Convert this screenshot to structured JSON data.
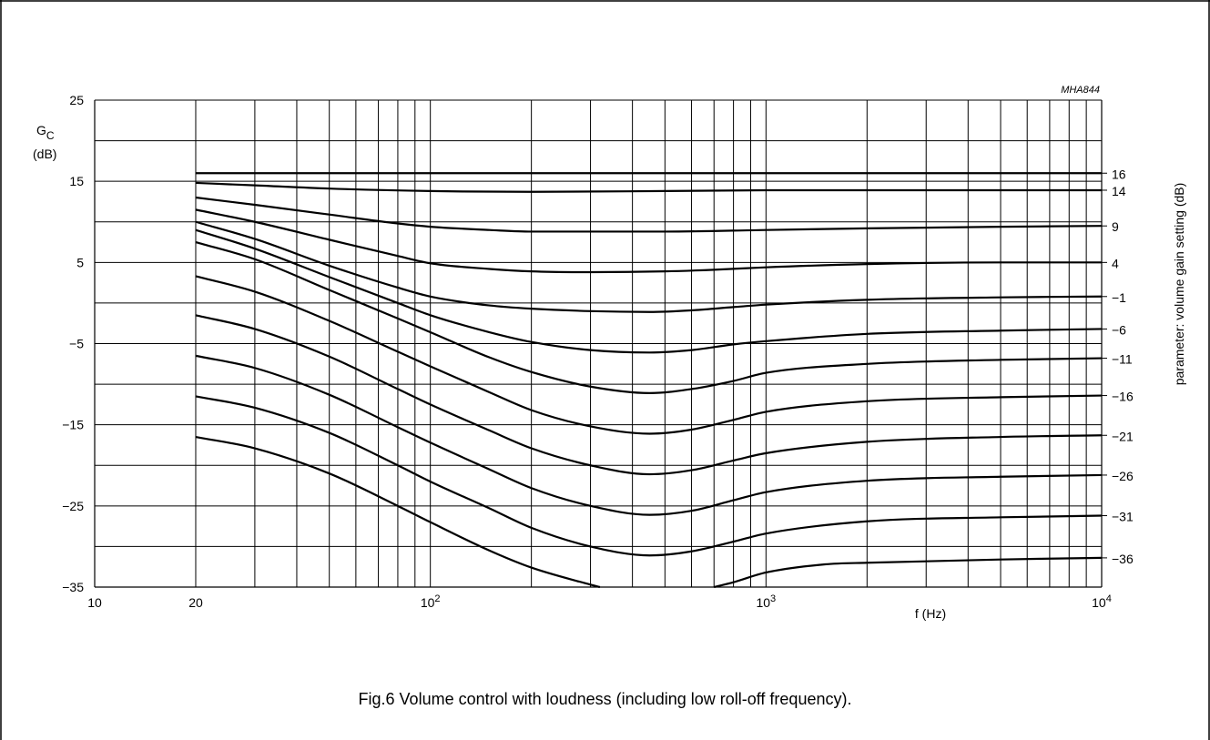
{
  "caption": "Fig.6  Volume control with loudness (including low roll-off frequency).",
  "chart_data": {
    "type": "line",
    "code": "MHA844",
    "x_scale": "log",
    "xlim": [
      10,
      10000
    ],
    "ylim": [
      -35,
      25
    ],
    "grid": true,
    "ylabel_main": "G",
    "ylabel_sub": "C",
    "ylabel_unit": "(dB)",
    "xlabel": "f (Hz)",
    "right_label": "parameter: volume gain setting (dB)",
    "y_ticks": [
      {
        "value": 25,
        "label": "25"
      },
      {
        "value": 15,
        "label": "15"
      },
      {
        "value": 5,
        "label": "5"
      },
      {
        "value": -5,
        "label": "−5"
      },
      {
        "value": -15,
        "label": "−15"
      },
      {
        "value": -25,
        "label": "−25"
      },
      {
        "value": -35,
        "label": "−35"
      }
    ],
    "x_ticks": [
      {
        "value": 10,
        "label": "10"
      },
      {
        "value": 20,
        "label": "20"
      },
      {
        "value": 100,
        "label": "10",
        "sup": "2"
      },
      {
        "value": 1000,
        "label": "10",
        "sup": "3"
      },
      {
        "value": 10000,
        "label": "10",
        "sup": "4"
      }
    ],
    "series": [
      {
        "name": "16",
        "x": [
          20,
          10000
        ],
        "y": [
          16,
          16
        ]
      },
      {
        "name": "14",
        "x": [
          20,
          30,
          50,
          100,
          200,
          500,
          1000,
          2000,
          5000,
          10000
        ],
        "y": [
          14.8,
          14.5,
          14.1,
          13.8,
          13.7,
          13.8,
          13.9,
          13.9,
          13.9,
          13.9
        ]
      },
      {
        "name": "9",
        "x": [
          20,
          30,
          50,
          80,
          100,
          150,
          200,
          300,
          500,
          1000,
          2000,
          5000,
          10000
        ],
        "y": [
          13,
          12.1,
          10.9,
          9.8,
          9.4,
          9.0,
          8.8,
          8.8,
          8.8,
          9.0,
          9.2,
          9.4,
          9.5
        ]
      },
      {
        "name": "4",
        "x": [
          20,
          30,
          50,
          80,
          100,
          150,
          200,
          300,
          500,
          700,
          1000,
          2000,
          5000,
          10000
        ],
        "y": [
          11.5,
          10.0,
          7.8,
          5.8,
          4.9,
          4.2,
          3.9,
          3.8,
          3.9,
          4.1,
          4.4,
          4.8,
          5.0,
          5.0
        ]
      },
      {
        "name": "−1",
        "x": [
          20,
          30,
          50,
          80,
          100,
          150,
          200,
          300,
          450,
          600,
          800,
          1000,
          2000,
          5000,
          10000
        ],
        "y": [
          10.0,
          7.9,
          4.6,
          1.9,
          0.8,
          -0.3,
          -0.7,
          -1.0,
          -1.1,
          -0.9,
          -0.5,
          -0.2,
          0.4,
          0.7,
          0.8
        ]
      },
      {
        "name": "−6",
        "x": [
          20,
          30,
          50,
          80,
          100,
          150,
          200,
          300,
          450,
          600,
          800,
          1000,
          2000,
          5000,
          10000
        ],
        "y": [
          9.0,
          6.7,
          3.2,
          0.0,
          -1.5,
          -3.6,
          -4.8,
          -5.8,
          -6.1,
          -5.8,
          -5.1,
          -4.7,
          -3.8,
          -3.4,
          -3.2
        ]
      },
      {
        "name": "−11",
        "x": [
          20,
          30,
          50,
          80,
          100,
          150,
          200,
          300,
          450,
          600,
          800,
          1000,
          2000,
          5000,
          10000
        ],
        "y": [
          7.5,
          5.4,
          1.6,
          -1.9,
          -3.6,
          -6.7,
          -8.5,
          -10.3,
          -11.1,
          -10.6,
          -9.6,
          -8.6,
          -7.5,
          -7.0,
          -6.8
        ]
      },
      {
        "name": "−16",
        "x": [
          20,
          30,
          50,
          80,
          100,
          150,
          200,
          300,
          450,
          600,
          800,
          1000,
          2000,
          5000,
          10000
        ],
        "y": [
          3.3,
          1.4,
          -2.2,
          -6.0,
          -7.8,
          -11.0,
          -13.2,
          -15.2,
          -16.1,
          -15.6,
          -14.4,
          -13.4,
          -12.1,
          -11.6,
          -11.4
        ]
      },
      {
        "name": "−21",
        "x": [
          20,
          30,
          50,
          80,
          100,
          150,
          200,
          300,
          450,
          600,
          800,
          1000,
          2000,
          5000,
          10000
        ],
        "y": [
          -1.5,
          -3.2,
          -6.6,
          -10.6,
          -12.5,
          -15.7,
          -17.9,
          -20.0,
          -21.1,
          -20.6,
          -19.4,
          -18.5,
          -17.1,
          -16.5,
          -16.3
        ]
      },
      {
        "name": "−26",
        "x": [
          20,
          30,
          50,
          80,
          100,
          150,
          200,
          300,
          450,
          600,
          800,
          1000,
          2000,
          5000,
          10000
        ],
        "y": [
          -6.5,
          -8.0,
          -11.3,
          -15.3,
          -17.2,
          -20.5,
          -22.8,
          -25.0,
          -26.1,
          -25.6,
          -24.3,
          -23.3,
          -21.9,
          -21.4,
          -21.2
        ]
      },
      {
        "name": "−31",
        "x": [
          20,
          30,
          50,
          80,
          100,
          150,
          200,
          300,
          450,
          600,
          800,
          1000,
          2000,
          5000,
          10000
        ],
        "y": [
          -11.5,
          -12.9,
          -16.0,
          -20.0,
          -22.0,
          -25.3,
          -27.7,
          -30.0,
          -31.1,
          -30.6,
          -29.4,
          -28.4,
          -26.9,
          -26.4,
          -26.2
        ]
      },
      {
        "name": "−36",
        "x": [
          20,
          30,
          50,
          80,
          100,
          150,
          200,
          300,
          320
        ],
        "y": [
          -16.5,
          -17.9,
          -21.0,
          -25.0,
          -27.0,
          -30.5,
          -32.6,
          -34.7,
          -35.0
        ],
        "x2": [
          700,
          800,
          1000,
          1500,
          2000,
          5000,
          10000
        ],
        "y2": [
          -35.0,
          -34.4,
          -33.2,
          -32.2,
          -32.0,
          -31.6,
          -31.4
        ]
      }
    ],
    "right_labels": [
      "16",
      "14",
      "9",
      "4",
      "−1",
      "−6",
      "−11",
      "−16",
      "−21",
      "−26",
      "−31",
      "−36"
    ]
  }
}
